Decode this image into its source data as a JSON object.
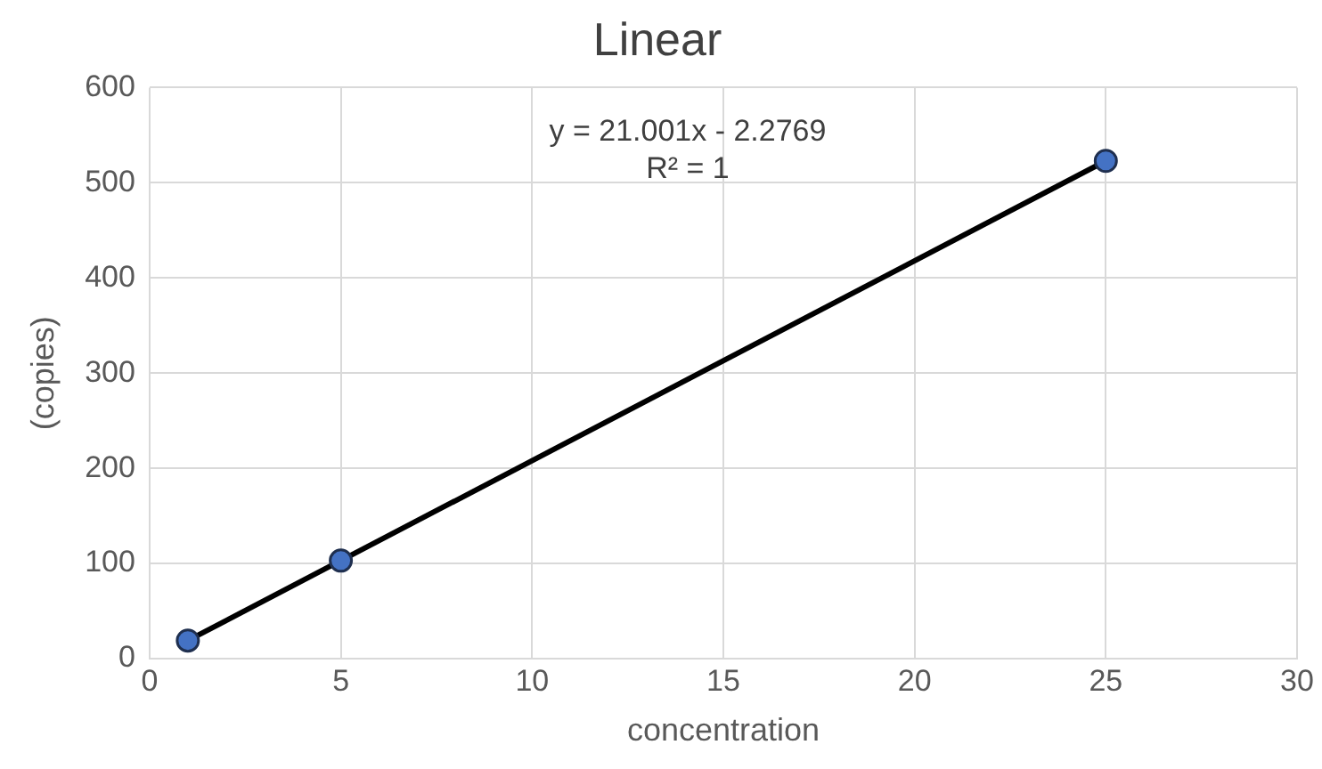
{
  "chart_data": {
    "type": "scatter",
    "title": "Linear",
    "xlabel": "concentration",
    "ylabel": "(copies)",
    "xlim": [
      0,
      30
    ],
    "xticks": [
      0,
      5,
      10,
      15,
      20,
      25,
      30
    ],
    "ylim": [
      0,
      600
    ],
    "yticks": [
      0,
      100,
      200,
      300,
      400,
      500,
      600
    ],
    "grid": true,
    "legend": false,
    "series": [
      {
        "type": "scatter",
        "x": [
          1,
          5,
          25
        ],
        "values": [
          19,
          103,
          523
        ],
        "color": "#4472c4",
        "marker": "circle"
      },
      {
        "type": "line",
        "x": [
          1,
          25
        ],
        "values": [
          19,
          523
        ],
        "color": "#000000",
        "marker": "none",
        "line_style": "solid"
      }
    ],
    "annotations": [
      "y = 21.001x - 2.2769",
      "R² = 1"
    ]
  }
}
